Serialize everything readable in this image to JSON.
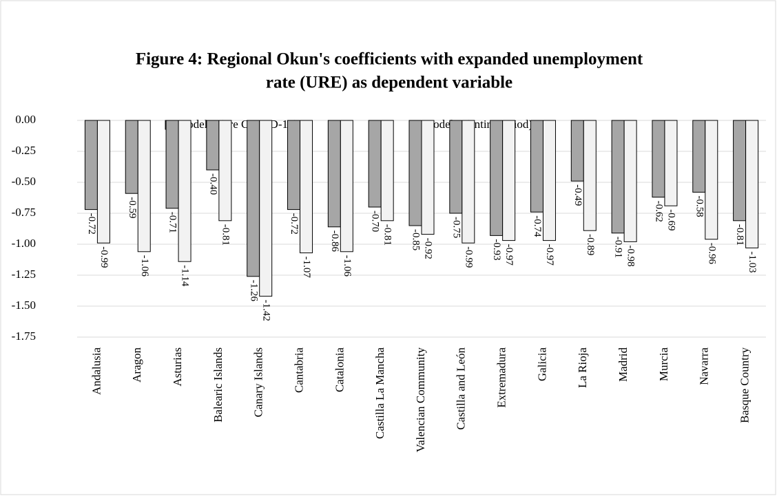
{
  "chart_data": {
    "type": "bar",
    "title": "Figure 4: Regional Okun's coefficients with expanded unemployment",
    "subtitle": "rate (URE) as dependent variable",
    "categories": [
      "Andalusia",
      "Aragon",
      "Asturias",
      "Balearic Islands",
      "Canary Islands",
      "Cantabria",
      "Catalonia",
      "Castilla La Mancha",
      "Valencian Community",
      "Castilla and León",
      "Extremadura",
      "Galicia",
      "La Rioja",
      "Madrid",
      "Murcia",
      "Navarra",
      "Basque Country"
    ],
    "series": [
      {
        "name": "Model 3 (pre COVID-19)",
        "color": "#a6a6a6",
        "values": [
          -0.72,
          -0.59,
          -0.71,
          -0.4,
          -1.26,
          -0.72,
          -0.86,
          -0.7,
          -0.85,
          -0.75,
          -0.93,
          -0.74,
          -0.49,
          -0.91,
          -0.62,
          -0.58,
          -0.81
        ],
        "value_labels": [
          "-0.72",
          "-0.59",
          "-0.71",
          "-0.40",
          "-1.26",
          "-0.72",
          "-0.86",
          "-0.70",
          "-0.85",
          "-0.75",
          "-0.93",
          "-0.74",
          "-0.49",
          "-0.91",
          "-0.62",
          "-0.58",
          "-0.81"
        ]
      },
      {
        "name": "Model 4 (entire period)",
        "color": "#f2f2f2",
        "values": [
          -0.99,
          -1.06,
          -1.14,
          -0.81,
          -1.42,
          -1.07,
          -1.06,
          -0.81,
          -0.92,
          -0.99,
          -0.97,
          -0.97,
          -0.89,
          -0.98,
          -0.69,
          -0.96,
          -1.03
        ],
        "value_labels": [
          "-0.99",
          "-1.06",
          "-1.14",
          "-0.81",
          "-1.42",
          "-1.07",
          "-1.06",
          "-0.81",
          "-0.92",
          "-0.99",
          "-0.97",
          "-0.97",
          "-0.89",
          "-0.98",
          "-0.69",
          "-0.96",
          "-1.03"
        ]
      }
    ],
    "ylim": [
      -1.75,
      0
    ],
    "yticks": [
      {
        "value": 0,
        "label": "0.00"
      },
      {
        "value": -0.25,
        "label": "-0.25"
      },
      {
        "value": -0.5,
        "label": "-0.50"
      },
      {
        "value": -0.75,
        "label": "-0.75"
      },
      {
        "value": -1,
        "label": "-1.00"
      },
      {
        "value": -1.25,
        "label": "-1.25"
      },
      {
        "value": -1.5,
        "label": "-1.50"
      },
      {
        "value": -1.75,
        "label": "-1.75"
      }
    ],
    "grid": true,
    "legend": "top"
  }
}
